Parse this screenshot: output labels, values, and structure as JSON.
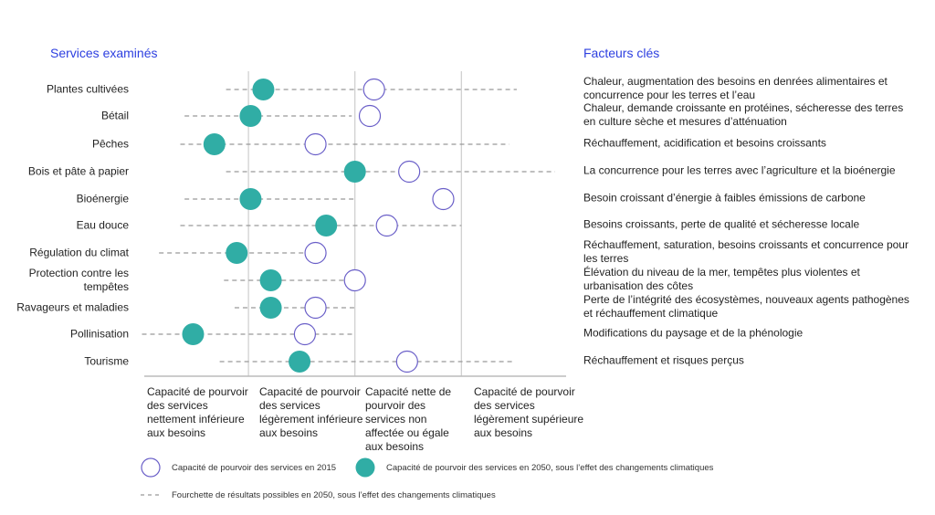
{
  "chart_data": {
    "type": "scatter",
    "left_header": "Services examinés",
    "right_header": "Facteurs clés",
    "xlim": [
      0,
      4
    ],
    "grid": "vertical lines between categories",
    "x_categories": [
      "Capacité de pourvoir des services nettement inférieure aux besoins",
      "Capacité de pourvoir des services légèrement inférieure aux besoins",
      "Capacité nette de pourvoir des services non affectée ou égale aux besoins",
      "Capacité de pourvoir des services légèrement supérieure aux besoins"
    ],
    "rows": [
      {
        "service": "Plantes cultivées",
        "factor": "Chaleur, augmentation des besoins en denrées alimentaires et concurrence pour les terres et l’eau",
        "v2015": 2.18,
        "v2050": 1.14,
        "range": [
          0.79,
          3.52
        ]
      },
      {
        "service": "Bétail",
        "factor": "Chaleur, demande croissante en protéines, sécheresse des terres en culture sèche et mesures d’atténuation",
        "v2015": 2.14,
        "v2050": 1.02,
        "range": [
          0.4,
          1.97
        ]
      },
      {
        "service": "Pêches",
        "factor": "Réchauffement, acidification et besoins croissants",
        "v2015": 1.63,
        "v2050": 0.68,
        "range": [
          0.36,
          3.45
        ]
      },
      {
        "service": "Bois et pâte à papier",
        "factor": "La concurrence pour les terres avec l’agriculture et la bioénergie",
        "v2015": 2.51,
        "v2050": 2.0,
        "range": [
          0.79,
          3.88
        ]
      },
      {
        "service": "Bioénergie",
        "factor": "Besoin croissant d’énergie à faibles émissions de carbone",
        "v2015": 2.83,
        "v2050": 1.02,
        "range": [
          0.4,
          2.0
        ]
      },
      {
        "service": "Eau douce",
        "factor": "Besoins croissants, perte de qualité et sécheresse locale",
        "v2015": 2.3,
        "v2050": 1.73,
        "range": [
          0.36,
          3.0
        ]
      },
      {
        "service": "Régulation du climat",
        "factor": "Réchauffement, saturation, besoins croissants et concurrence pour les terres",
        "v2015": 1.63,
        "v2050": 0.89,
        "range": [
          0.16,
          1.52
        ]
      },
      {
        "service": "Protection contre les tempêtes",
        "factor": "Élévation du niveau de la mer, tempêtes plus violentes et urbanisation des côtes",
        "v2015": 2.0,
        "v2050": 1.21,
        "range": [
          0.77,
          1.9
        ]
      },
      {
        "service": "Ravageurs et maladies",
        "factor": "Perte de l’intégrité des écosystèmes, nouveaux agents pathogènes et réchauffement climatique",
        "v2015": 1.63,
        "v2050": 1.21,
        "range": [
          0.87,
          2.0
        ]
      },
      {
        "service": "Pollinisation",
        "factor": "Modifications du paysage et de la phénologie",
        "v2015": 1.53,
        "v2050": 0.48,
        "range": [
          0.0,
          1.99
        ]
      },
      {
        "service": "Tourisme",
        "factor": "Réchauffement et risques perçus",
        "v2015": 2.49,
        "v2050": 1.48,
        "range": [
          0.73,
          3.49
        ]
      }
    ],
    "legend": {
      "open": "Capacité de pourvoir des services en 2015",
      "filled": "Capacité de pourvoir des services en 2050, sous l’effet des changements climatiques",
      "dashed": "Fourchette de résultats possibles en 2050, sous l’effet des changements climatiques"
    },
    "colors": {
      "header": "#2d3fe0",
      "filled": "#30ada5",
      "open": "#6a5fc8",
      "dash": "#999999",
      "grid": "#cccccc"
    }
  }
}
